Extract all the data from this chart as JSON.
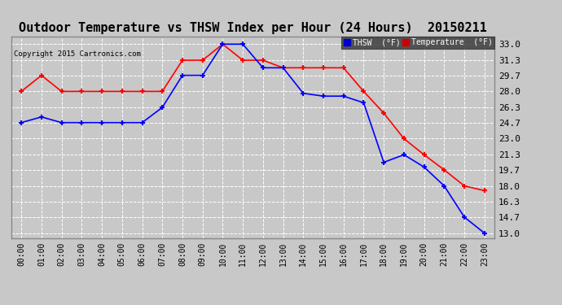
{
  "title": "Outdoor Temperature vs THSW Index per Hour (24 Hours)  20150211",
  "copyright": "Copyright 2015 Cartronics.com",
  "hours": [
    "00:00",
    "01:00",
    "02:00",
    "03:00",
    "04:00",
    "05:00",
    "06:00",
    "07:00",
    "08:00",
    "09:00",
    "10:00",
    "11:00",
    "12:00",
    "13:00",
    "14:00",
    "15:00",
    "16:00",
    "17:00",
    "18:00",
    "19:00",
    "20:00",
    "21:00",
    "22:00",
    "23:00"
  ],
  "temperature": [
    28.0,
    29.7,
    28.0,
    28.0,
    28.0,
    28.0,
    28.0,
    28.0,
    31.3,
    31.3,
    33.0,
    31.3,
    31.3,
    30.5,
    30.5,
    30.5,
    30.5,
    28.0,
    25.7,
    23.0,
    21.3,
    19.7,
    18.0,
    17.5
  ],
  "thsw": [
    24.7,
    25.3,
    24.7,
    24.7,
    24.7,
    24.7,
    24.7,
    26.3,
    29.7,
    29.7,
    33.0,
    33.0,
    30.5,
    30.5,
    27.8,
    27.5,
    27.5,
    26.8,
    20.5,
    21.3,
    20.0,
    18.0,
    14.7,
    13.0
  ],
  "temp_color": "#ff0000",
  "thsw_color": "#0000ff",
  "bg_color": "#c8c8c8",
  "plot_bg_color": "#c8c8c8",
  "grid_color": "#ffffff",
  "ylim_min": 12.5,
  "ylim_max": 33.8,
  "yticks": [
    13.0,
    14.7,
    16.3,
    18.0,
    19.7,
    21.3,
    23.0,
    24.7,
    26.3,
    28.0,
    29.7,
    31.3,
    33.0
  ],
  "title_fontsize": 11,
  "legend_thsw_label": "THSW  (°F)",
  "legend_temp_label": "Temperature  (°F)",
  "legend_thsw_bg": "#0000cc",
  "legend_temp_bg": "#cc0000"
}
